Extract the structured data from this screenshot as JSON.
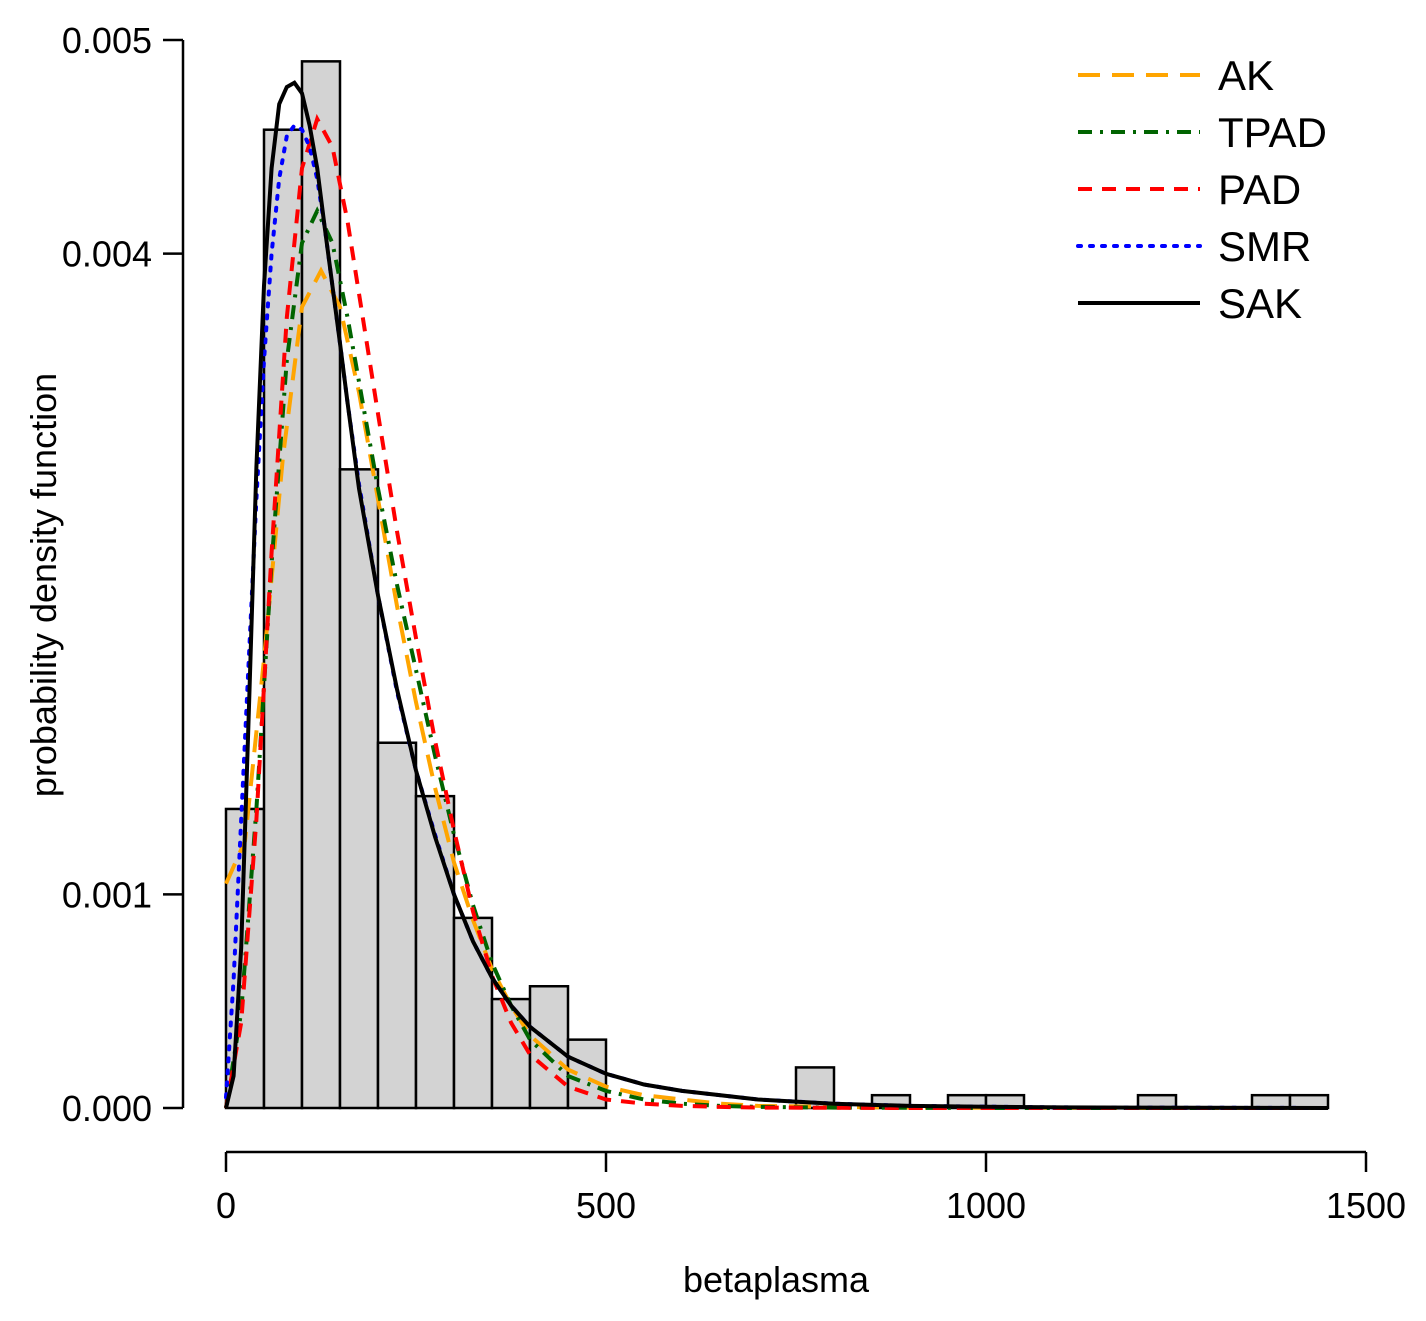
{
  "chart_data": {
    "type": "histogram",
    "xlabel": "betaplasma",
    "ylabel": "probability density function",
    "xlim": [
      0,
      1500
    ],
    "ylim": [
      0,
      0.005
    ],
    "x_ticks": [
      0,
      500,
      1000,
      1500
    ],
    "x_tick_labels": [
      "0",
      "500",
      "1000",
      "1500"
    ],
    "y_ticks": [
      0,
      0.001,
      0.004,
      0.005
    ],
    "y_tick_labels": [
      "0.000",
      "0.001",
      "0.004",
      "0.005"
    ],
    "histogram": {
      "bin_width": 50,
      "bins": [
        {
          "start": 0,
          "end": 50,
          "density": 0.0014
        },
        {
          "start": 50,
          "end": 100,
          "density": 0.00458
        },
        {
          "start": 100,
          "end": 150,
          "density": 0.0049
        },
        {
          "start": 150,
          "end": 200,
          "density": 0.00299
        },
        {
          "start": 200,
          "end": 250,
          "density": 0.00171
        },
        {
          "start": 250,
          "end": 300,
          "density": 0.00146
        },
        {
          "start": 300,
          "end": 350,
          "density": 0.00089
        },
        {
          "start": 350,
          "end": 400,
          "density": 0.00051
        },
        {
          "start": 400,
          "end": 450,
          "density": 0.00057
        },
        {
          "start": 450,
          "end": 500,
          "density": 0.00032
        },
        {
          "start": 500,
          "end": 550,
          "density": 0
        },
        {
          "start": 550,
          "end": 600,
          "density": 0
        },
        {
          "start": 600,
          "end": 650,
          "density": 0
        },
        {
          "start": 650,
          "end": 700,
          "density": 0
        },
        {
          "start": 700,
          "end": 750,
          "density": 0
        },
        {
          "start": 750,
          "end": 800,
          "density": 0.00019
        },
        {
          "start": 800,
          "end": 850,
          "density": 0
        },
        {
          "start": 850,
          "end": 900,
          "density": 6e-05
        },
        {
          "start": 900,
          "end": 950,
          "density": 0
        },
        {
          "start": 950,
          "end": 1000,
          "density": 6e-05
        },
        {
          "start": 1000,
          "end": 1050,
          "density": 6e-05
        },
        {
          "start": 1050,
          "end": 1100,
          "density": 0
        },
        {
          "start": 1100,
          "end": 1150,
          "density": 0
        },
        {
          "start": 1150,
          "end": 1200,
          "density": 0
        },
        {
          "start": 1200,
          "end": 1250,
          "density": 6e-05
        },
        {
          "start": 1250,
          "end": 1300,
          "density": 0
        },
        {
          "start": 1300,
          "end": 1350,
          "density": 0
        },
        {
          "start": 1350,
          "end": 1400,
          "density": 6e-05
        },
        {
          "start": 1400,
          "end": 1450,
          "density": 6e-05
        }
      ]
    },
    "series": [
      {
        "name": "AK",
        "color": "#FFA500",
        "style": "dashed",
        "x": [
          0,
          25,
          50,
          75,
          100,
          125,
          150,
          175,
          200,
          225,
          250,
          275,
          300,
          325,
          350,
          375,
          400,
          450,
          500,
          550,
          600,
          650,
          700,
          800,
          900,
          1000,
          1200,
          1450
        ],
        "y": [
          0.00105,
          0.00125,
          0.0021,
          0.00305,
          0.00375,
          0.00392,
          0.00375,
          0.00335,
          0.00285,
          0.00235,
          0.0019,
          0.0015,
          0.00115,
          0.00088,
          0.00065,
          0.00048,
          0.00034,
          0.00018,
          0.0001,
          6e-05,
          4e-05,
          2e-05,
          1e-05,
          5e-06,
          2e-06,
          1e-06,
          0,
          0
        ]
      },
      {
        "name": "TPAD",
        "color": "#006400",
        "style": "dotdash",
        "x": [
          0,
          20,
          40,
          60,
          80,
          100,
          120,
          140,
          160,
          180,
          200,
          225,
          250,
          275,
          300,
          325,
          350,
          375,
          400,
          450,
          500,
          550,
          600,
          650,
          700,
          800,
          900,
          1000,
          1200,
          1450
        ],
        "y": [
          0,
          0.00045,
          0.0014,
          0.00255,
          0.0035,
          0.00405,
          0.0042,
          0.00405,
          0.0037,
          0.0033,
          0.0029,
          0.00245,
          0.00205,
          0.00165,
          0.00128,
          0.00095,
          0.00068,
          0.00048,
          0.00032,
          0.00015,
          8e-05,
          4e-05,
          2e-05,
          1e-05,
          5e-06,
          2e-06,
          1e-06,
          0,
          0,
          0
        ]
      },
      {
        "name": "PAD",
        "color": "#FF0000",
        "style": "dashed",
        "x": [
          0,
          20,
          40,
          60,
          80,
          100,
          120,
          140,
          160,
          180,
          200,
          225,
          250,
          275,
          300,
          325,
          350,
          375,
          400,
          450,
          500,
          550,
          600,
          650,
          700,
          800,
          900,
          1000,
          1200,
          1450
        ],
        "y": [
          0,
          0.0004,
          0.00135,
          0.0026,
          0.0037,
          0.0044,
          0.00463,
          0.0045,
          0.00415,
          0.0037,
          0.00325,
          0.0027,
          0.0022,
          0.00172,
          0.0013,
          0.00092,
          0.00062,
          0.0004,
          0.00025,
          0.0001,
          4e-05,
          2e-05,
          1e-05,
          5e-06,
          2e-06,
          1e-06,
          0,
          0,
          0,
          0
        ]
      },
      {
        "name": "SMR",
        "color": "#0000FF",
        "style": "dotted",
        "x": [
          0,
          10,
          20,
          30,
          40,
          50,
          60,
          70,
          80,
          90,
          100,
          110,
          120,
          130,
          140,
          150,
          160,
          175,
          200,
          225,
          250,
          275,
          300,
          325,
          350,
          375,
          400,
          450,
          500,
          550,
          600,
          700,
          800,
          900,
          1000,
          1100,
          1200,
          1450
        ],
        "y": [
          5e-05,
          0.0006,
          0.00135,
          0.0021,
          0.00285,
          0.0035,
          0.004,
          0.00435,
          0.00455,
          0.0046,
          0.00458,
          0.0045,
          0.00435,
          0.00412,
          0.00385,
          0.00358,
          0.0033,
          0.00292,
          0.0024,
          0.00195,
          0.00158,
          0.00128,
          0.001,
          0.00078,
          0.00061,
          0.00048,
          0.00038,
          0.00024,
          0.00016,
          0.00011,
          8e-05,
          4e-05,
          2e-05,
          1e-05,
          6e-06,
          3e-06,
          2e-06,
          0
        ]
      },
      {
        "name": "SAK",
        "color": "#000000",
        "style": "solid",
        "x": [
          0,
          10,
          20,
          30,
          40,
          50,
          60,
          70,
          80,
          90,
          100,
          110,
          120,
          130,
          140,
          150,
          160,
          175,
          200,
          225,
          250,
          275,
          300,
          325,
          350,
          375,
          400,
          450,
          500,
          550,
          600,
          700,
          800,
          900,
          1000,
          1100,
          1200,
          1450
        ],
        "y": [
          0,
          0.00015,
          0.00075,
          0.00185,
          0.003,
          0.00385,
          0.0044,
          0.0047,
          0.00478,
          0.0048,
          0.00475,
          0.0046,
          0.0044,
          0.00412,
          0.00385,
          0.00358,
          0.0033,
          0.0029,
          0.0024,
          0.00196,
          0.00158,
          0.00127,
          0.001,
          0.00078,
          0.00061,
          0.00048,
          0.00038,
          0.00024,
          0.00016,
          0.00011,
          8e-05,
          4e-05,
          2e-05,
          1e-05,
          6e-06,
          3e-06,
          2e-06,
          0
        ]
      }
    ],
    "legend": {
      "position": "top-right",
      "entries": [
        "AK",
        "TPAD",
        "PAD",
        "SMR",
        "SAK"
      ]
    }
  }
}
